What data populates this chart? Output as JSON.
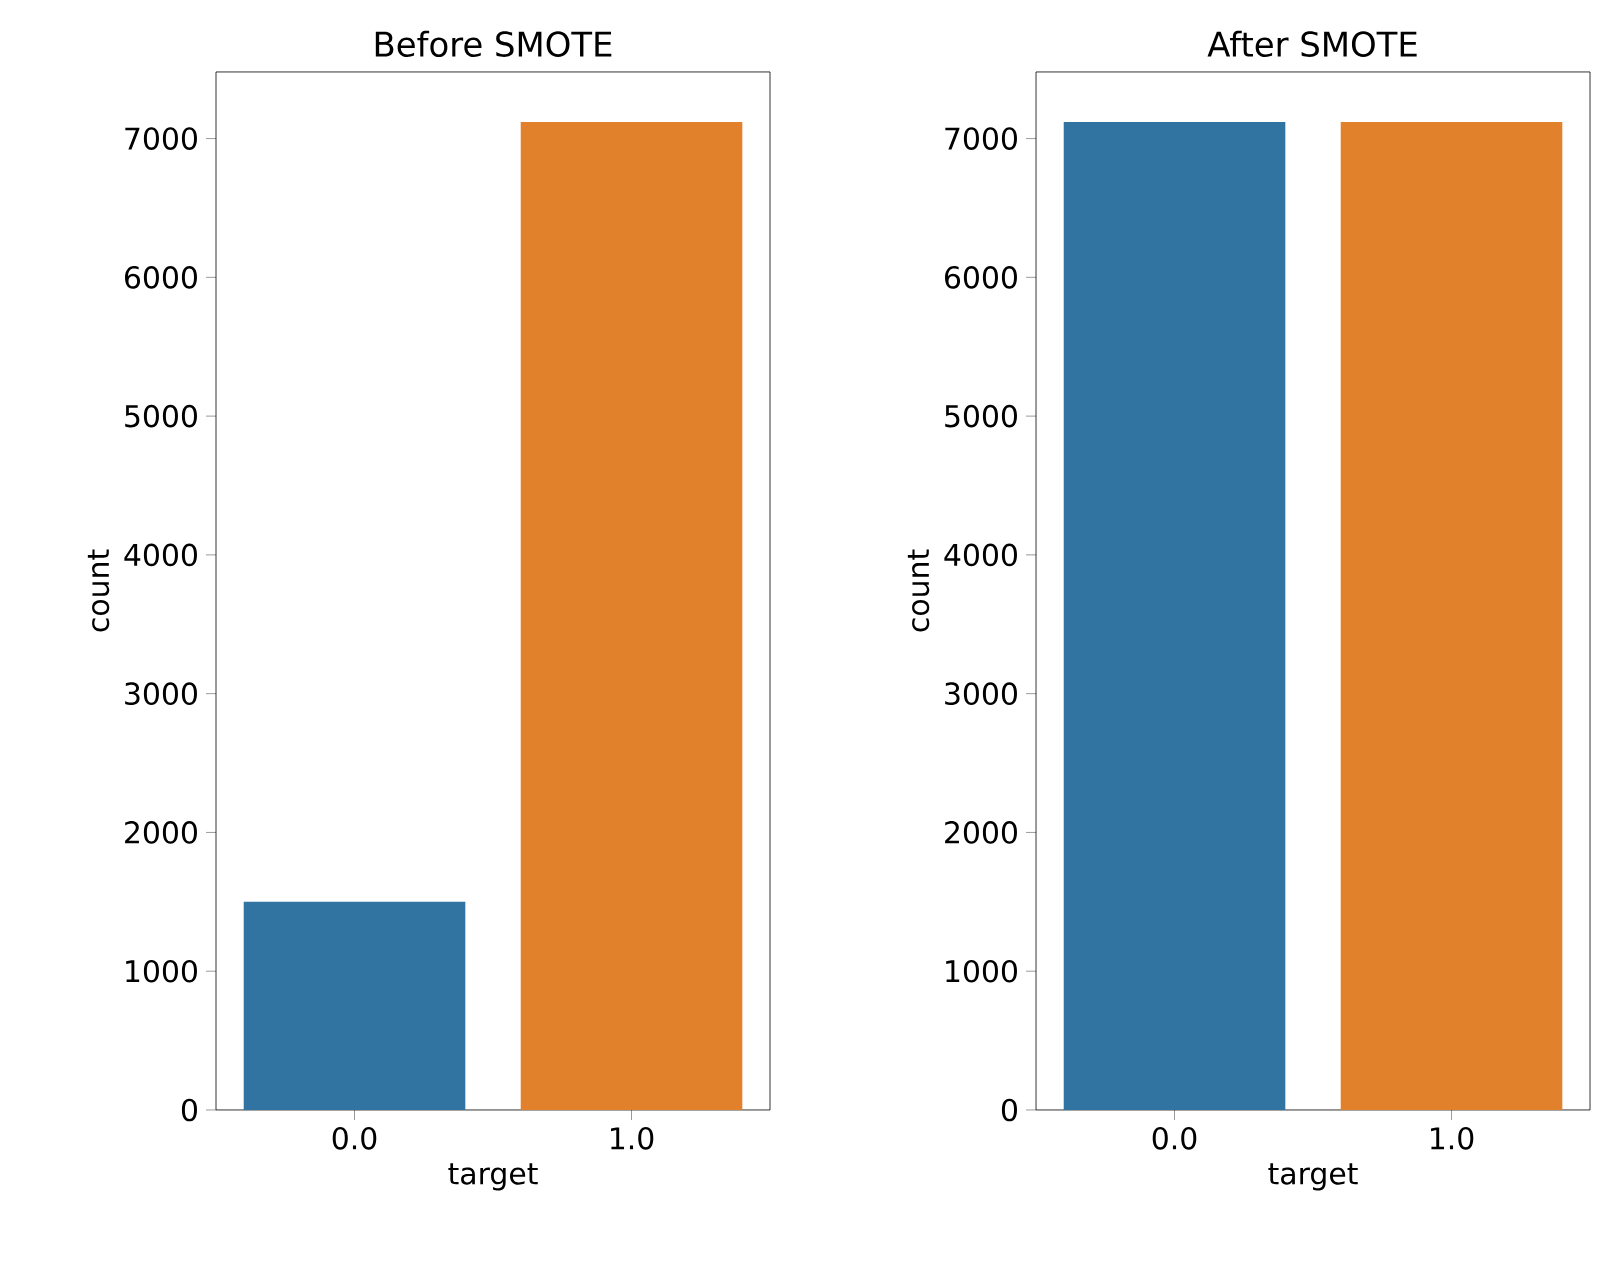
{
  "chart_data": [
    {
      "type": "bar",
      "title": "Before SMOTE",
      "xlabel": "target",
      "ylabel": "count",
      "categories": [
        "0.0",
        "1.0"
      ],
      "values": [
        1500,
        7120
      ],
      "colors": [
        "#3274a1",
        "#e1812c"
      ],
      "ylim": [
        0,
        7480
      ],
      "yticks": [
        0,
        1000,
        2000,
        3000,
        4000,
        5000,
        6000,
        7000
      ]
    },
    {
      "type": "bar",
      "title": "After SMOTE",
      "xlabel": "target",
      "ylabel": "count",
      "categories": [
        "0.0",
        "1.0"
      ],
      "values": [
        7120,
        7120
      ],
      "colors": [
        "#3274a1",
        "#e1812c"
      ],
      "ylim": [
        0,
        7480
      ],
      "yticks": [
        0,
        1000,
        2000,
        3000,
        4000,
        5000,
        6000,
        7000
      ]
    }
  ]
}
